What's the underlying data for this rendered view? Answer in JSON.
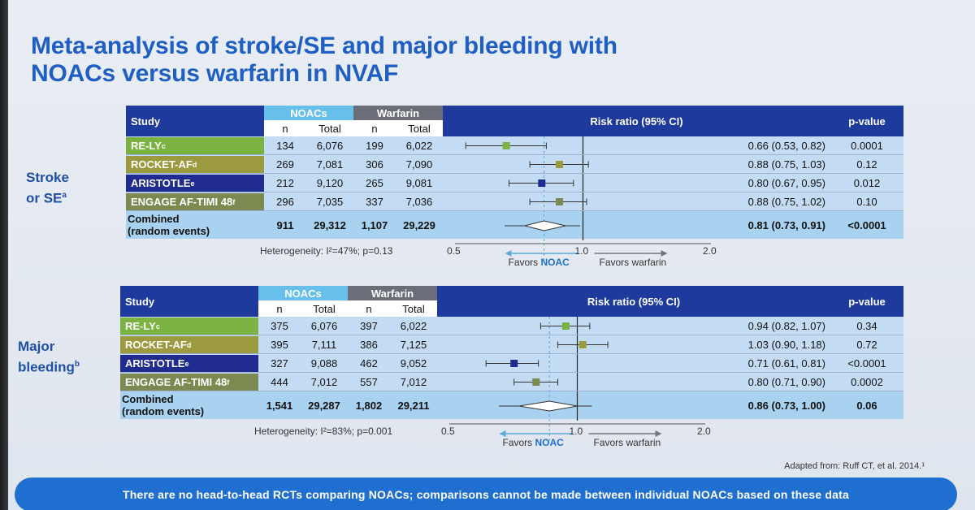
{
  "title_line1": "Meta-analysis of stroke/SE and major bleeding with",
  "title_line2": "NOACs versus warfarin in NVAF",
  "headers": {
    "study": "Study",
    "noacs": "NOACs",
    "warfarin": "Warfarin",
    "n": "n",
    "total": "Total",
    "risk_ratio": "Risk ratio (95% CI)",
    "p_value": "p-value"
  },
  "footnote": "Adapted from: Ruff CT, et al. 2014.¹",
  "banner": "There are no head-to-head RCTs comparing NOACs; comparisons cannot be made between individual NOACs based on these data",
  "colors": {
    "header_dark": "#1e3a9c",
    "noacs_header": "#67c0ec",
    "warfarin_header": "#6b6e78",
    "relyc": "#7ab342",
    "rocket": "#9c9a3e",
    "aristotle": "#1f2b8f",
    "engage": "#7c8a52",
    "table_body": "#c3dcf3",
    "combined": "#a9d2f0",
    "ref_line": "#5aa8de"
  },
  "chart_data": [
    {
      "type": "table",
      "side_label_line1": "Stroke",
      "side_label_line2": "or SE",
      "side_label_sup": "a",
      "studies": [
        {
          "name": "RE-LY",
          "sup": "c",
          "noac_n": "134",
          "noac_total": "6,076",
          "warf_n": "199",
          "warf_total": "6,022",
          "rr": 0.66,
          "lo": 0.53,
          "hi": 0.82,
          "ci_text": "0.66 (0.53, 0.82)",
          "p": "0.0001",
          "color_key": "relyc"
        },
        {
          "name": "ROCKET-AF",
          "sup": "d",
          "noac_n": "269",
          "noac_total": "7,081",
          "warf_n": "306",
          "warf_total": "7,090",
          "rr": 0.88,
          "lo": 0.75,
          "hi": 1.03,
          "ci_text": "0.88 (0.75, 1.03)",
          "p": "0.12",
          "color_key": "rocket"
        },
        {
          "name": "ARISTOTLE",
          "sup": "e",
          "noac_n": "212",
          "noac_total": "9,120",
          "warf_n": "265",
          "warf_total": "9,081",
          "rr": 0.8,
          "lo": 0.67,
          "hi": 0.95,
          "ci_text": "0.80 (0.67, 0.95)",
          "p": "0.012",
          "color_key": "aristotle"
        },
        {
          "name": "ENGAGE AF-TIMI 48",
          "sup": "f",
          "noac_n": "296",
          "noac_total": "7,035",
          "warf_n": "337",
          "warf_total": "7,036",
          "rr": 0.88,
          "lo": 0.75,
          "hi": 1.02,
          "ci_text": "0.88 (0.75, 1.02)",
          "p": "0.10",
          "color_key": "engage"
        }
      ],
      "combined": {
        "label1": "Combined",
        "label2": "(random events)",
        "noac_n": "911",
        "noac_total": "29,312",
        "warf_n": "1,107",
        "warf_total": "29,229",
        "rr": 0.81,
        "lo": 0.73,
        "hi": 0.91,
        "ci_text": "0.81 (0.73, 0.91)",
        "p": "<0.0001"
      },
      "heterogeneity": "Heterogeneity: I²=47%; p=0.13",
      "axis": {
        "min": 0.5,
        "max": 2.0,
        "ref": 1.0,
        "ticks": [
          "0.5",
          "1.0",
          "2.0"
        ],
        "scale": "log"
      },
      "favors_left_prefix": "Favors ",
      "favors_left_bold": "NOAC",
      "favors_right": "Favors warfarin"
    },
    {
      "type": "table",
      "side_label_line1": "Major",
      "side_label_line2": "bleeding",
      "side_label_sup": "b",
      "studies": [
        {
          "name": "RE-LY",
          "sup": "c",
          "noac_n": "375",
          "noac_total": "6,076",
          "warf_n": "397",
          "warf_total": "6,022",
          "rr": 0.94,
          "lo": 0.82,
          "hi": 1.07,
          "ci_text": "0.94 (0.82, 1.07)",
          "p": "0.34",
          "color_key": "relyc"
        },
        {
          "name": "ROCKET-AF",
          "sup": "d",
          "noac_n": "395",
          "noac_total": "7,111",
          "warf_n": "386",
          "warf_total": "7,125",
          "rr": 1.03,
          "lo": 0.9,
          "hi": 1.18,
          "ci_text": "1.03 (0.90, 1.18)",
          "p": "0.72",
          "color_key": "rocket"
        },
        {
          "name": "ARISTOTLE",
          "sup": "e",
          "noac_n": "327",
          "noac_total": "9,088",
          "warf_n": "462",
          "warf_total": "9,052",
          "rr": 0.71,
          "lo": 0.61,
          "hi": 0.81,
          "ci_text": "0.71 (0.61, 0.81)",
          "p": "<0.0001",
          "color_key": "aristotle"
        },
        {
          "name": "ENGAGE AF-TIMI 48",
          "sup": "f",
          "noac_n": "444",
          "noac_total": "7,012",
          "warf_n": "557",
          "warf_total": "7,012",
          "rr": 0.8,
          "lo": 0.71,
          "hi": 0.9,
          "ci_text": "0.80 (0.71, 0.90)",
          "p": "0.0002",
          "color_key": "engage"
        }
      ],
      "combined": {
        "label1": "Combined",
        "label2": "(random events)",
        "noac_n": "1,541",
        "noac_total": "29,287",
        "warf_n": "1,802",
        "warf_total": "29,211",
        "rr": 0.86,
        "lo": 0.73,
        "hi": 1.0,
        "ci_text": "0.86 (0.73, 1.00)",
        "p": "0.06"
      },
      "heterogeneity": "Heterogeneity: I²=83%; p=0.001",
      "axis": {
        "min": 0.5,
        "max": 2.0,
        "ref": 1.0,
        "ticks": [
          "0.5",
          "1.0",
          "2.0"
        ],
        "scale": "log"
      },
      "favors_left_prefix": "Favors ",
      "favors_left_bold": "NOAC",
      "favors_right": "Favors warfarin"
    }
  ]
}
